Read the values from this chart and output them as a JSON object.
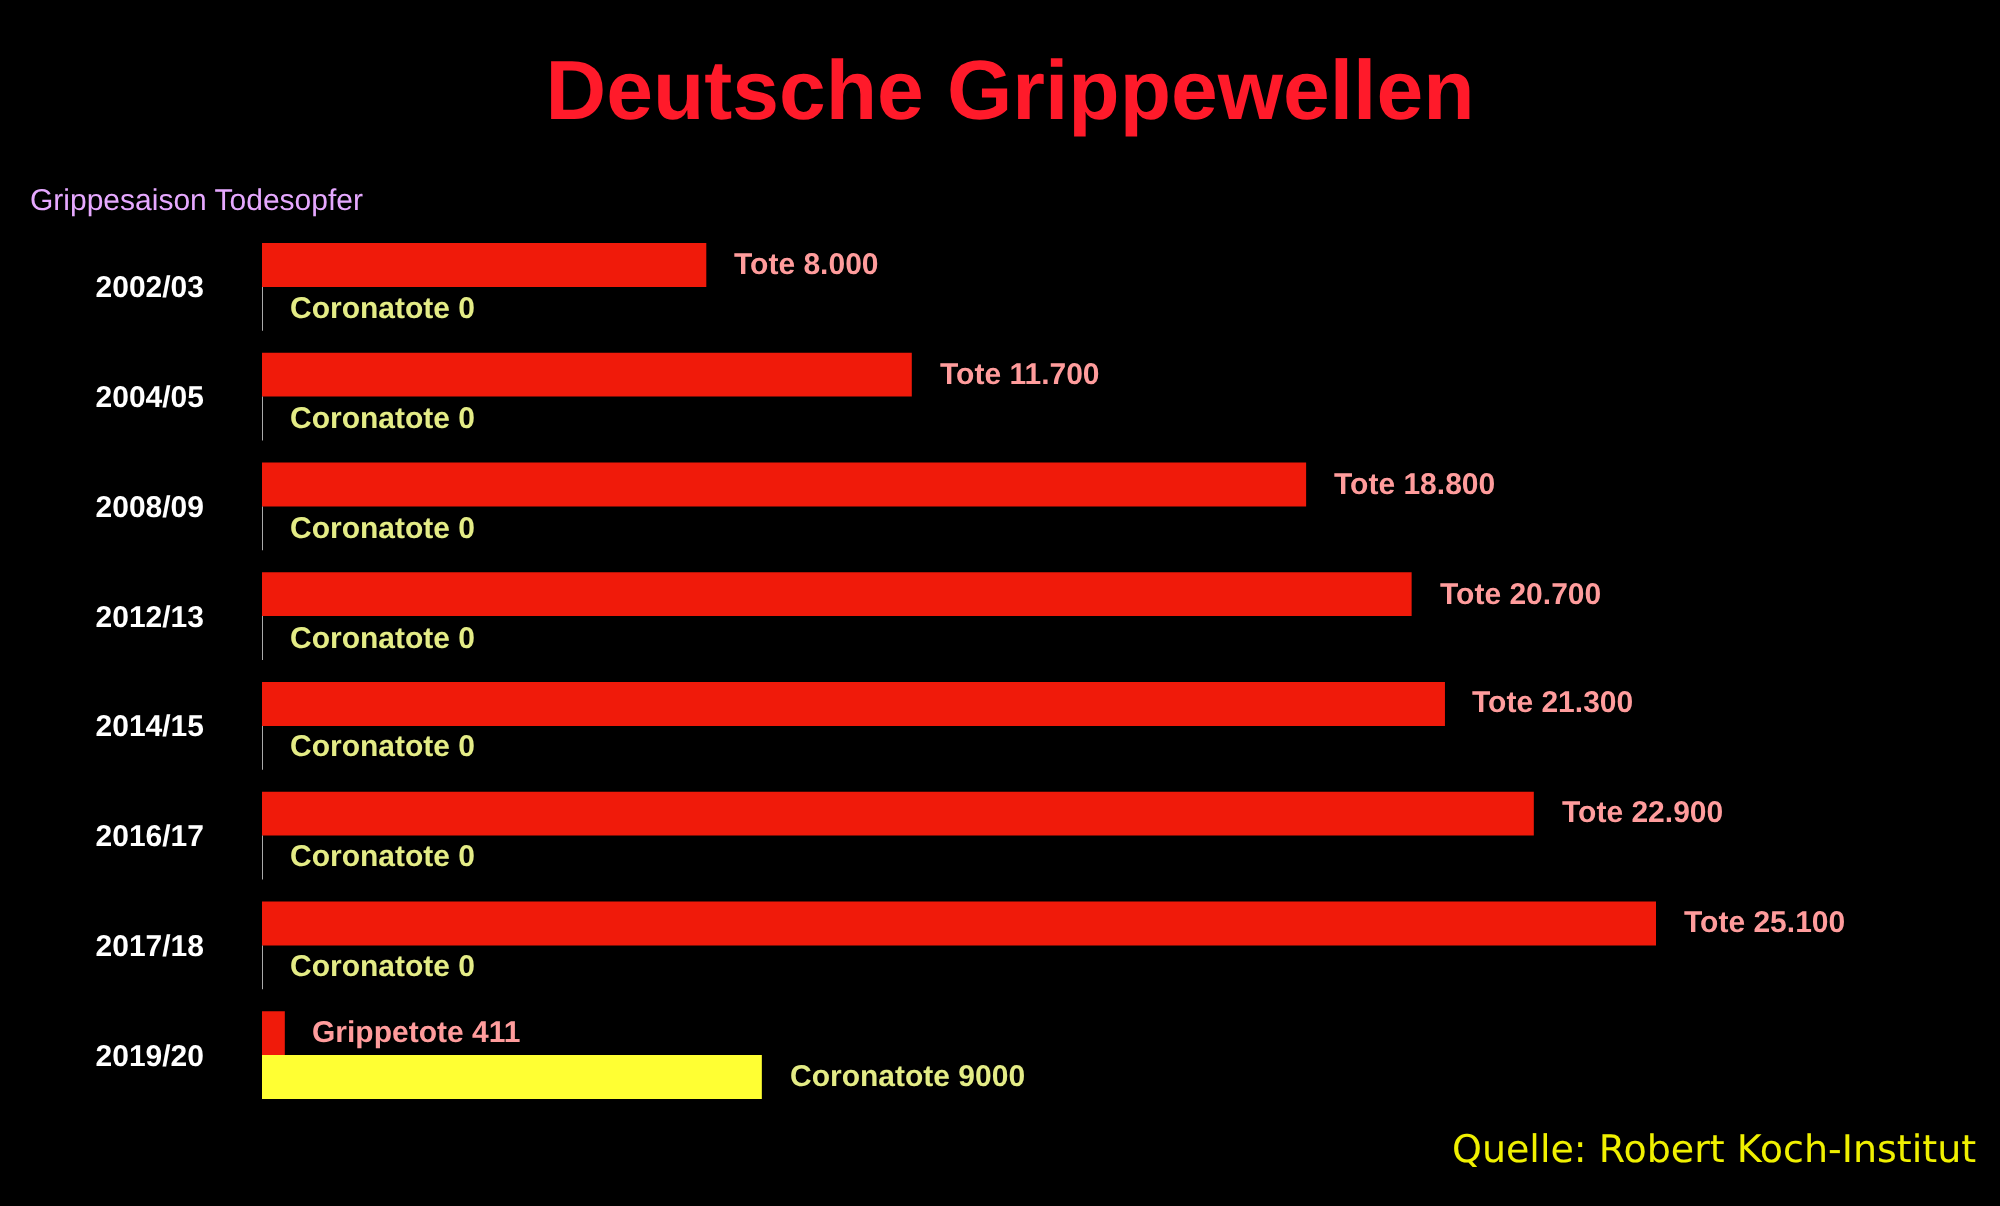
{
  "chart_data": {
    "type": "bar",
    "orientation": "horizontal",
    "title": "Deutsche Grippewellen",
    "categories": [
      "2002/03",
      "2004/05",
      "2008/09",
      "2012/13",
      "2014/15",
      "2016/17",
      "2017/18",
      "2019/20"
    ],
    "series": [
      {
        "color": "#f01a0a",
        "values": [
          8000,
          11700,
          18800,
          20700,
          21300,
          22900,
          25100,
          411
        ],
        "value_labels": [
          "Tote 8.000",
          "Tote 11.700",
          "Tote 18.800",
          "Tote 20.700",
          "Tote 21.300",
          "Tote 22.900",
          "Tote 25.100",
          "Grippetote 411"
        ]
      },
      {
        "color": "#ffff33",
        "values": [
          0,
          0,
          0,
          0,
          0,
          0,
          0,
          9000
        ],
        "value_labels": [
          "Coronatote 0",
          "Coronatote 0",
          "Coronatote 0",
          "Coronatote 0",
          "Coronatote 0",
          "Coronatote 0",
          "Coronatote 0",
          "Coronatote 9000"
        ]
      }
    ],
    "tick_labels": "y",
    "annotations": [
      "Grippesaison Todesopfer",
      "Quelle: Robert Koch-Institut"
    ]
  }
}
